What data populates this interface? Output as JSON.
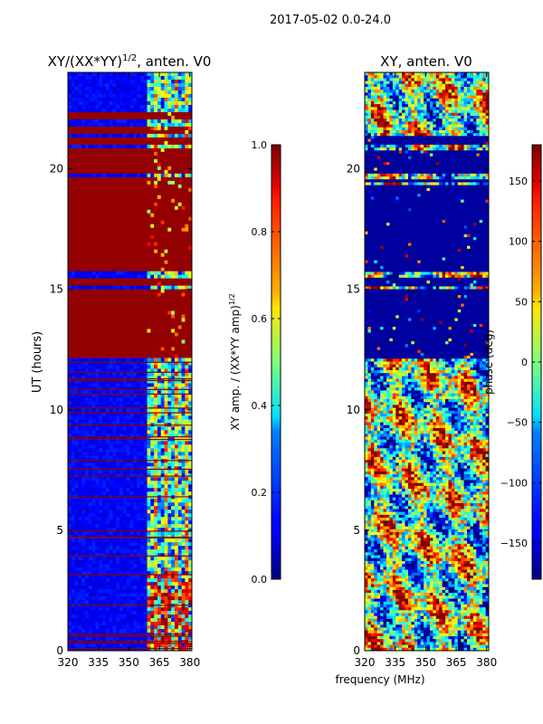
{
  "figure": {
    "suptitle": "2017-05-02 0.0-24.0",
    "common_xlabel": "frequency (MHz)"
  },
  "chart_data": [
    {
      "type": "heatmap",
      "panel": "amplitude",
      "title": "XY/(XX*YY)",
      "title_sup": "1/2",
      "title_tail": ", anten. V0",
      "ylabel": "UT (hours)",
      "xlim": [
        320,
        381
      ],
      "ylim": [
        0,
        24
      ],
      "xticks": [
        320,
        335,
        350,
        365,
        380
      ],
      "yticks": [
        0,
        5,
        10,
        15,
        20
      ],
      "colorbar": {
        "label": "XY amp. / (XX*YY amp)",
        "label_sup": "1/2",
        "range": [
          0.0,
          1.0
        ],
        "ticks": [
          "0.0",
          "0.2",
          "0.4",
          "0.6",
          "0.8",
          "1.0"
        ],
        "tick_values": [
          0.0,
          0.2,
          0.4,
          0.6,
          0.8,
          1.0
        ]
      },
      "saturated_bands_hours": [
        [
          12.1,
          15.0
        ],
        [
          15.1,
          15.5
        ],
        [
          15.7,
          19.3
        ],
        [
          19.4,
          19.6
        ],
        [
          19.8,
          20.8
        ],
        [
          21.0,
          21.3
        ],
        [
          21.5,
          21.8
        ],
        [
          22.0,
          22.4
        ]
      ],
      "active_freq_range_mhz": [
        359,
        381
      ],
      "colormap": "jet"
    },
    {
      "type": "heatmap",
      "panel": "phase",
      "title": "XY, anten. V0",
      "xlim": [
        320,
        381
      ],
      "ylim": [
        0,
        24
      ],
      "xticks": [
        320,
        335,
        350,
        365,
        380
      ],
      "yticks": [
        0,
        5,
        10,
        15,
        20
      ],
      "colorbar": {
        "label": "phase (deg)",
        "range": [
          -180,
          180
        ],
        "ticks": [
          "150",
          "100",
          "50",
          "0",
          "−50",
          "−100",
          "−150"
        ],
        "tick_values": [
          150,
          100,
          50,
          0,
          -50,
          -100,
          -150
        ]
      },
      "low_phase_bands_hours": [
        [
          12.1,
          15.0
        ],
        [
          15.1,
          15.5
        ],
        [
          15.7,
          19.3
        ],
        [
          19.4,
          19.6
        ],
        [
          19.8,
          20.8
        ],
        [
          21.0,
          21.3
        ]
      ],
      "colormap": "jet"
    }
  ]
}
